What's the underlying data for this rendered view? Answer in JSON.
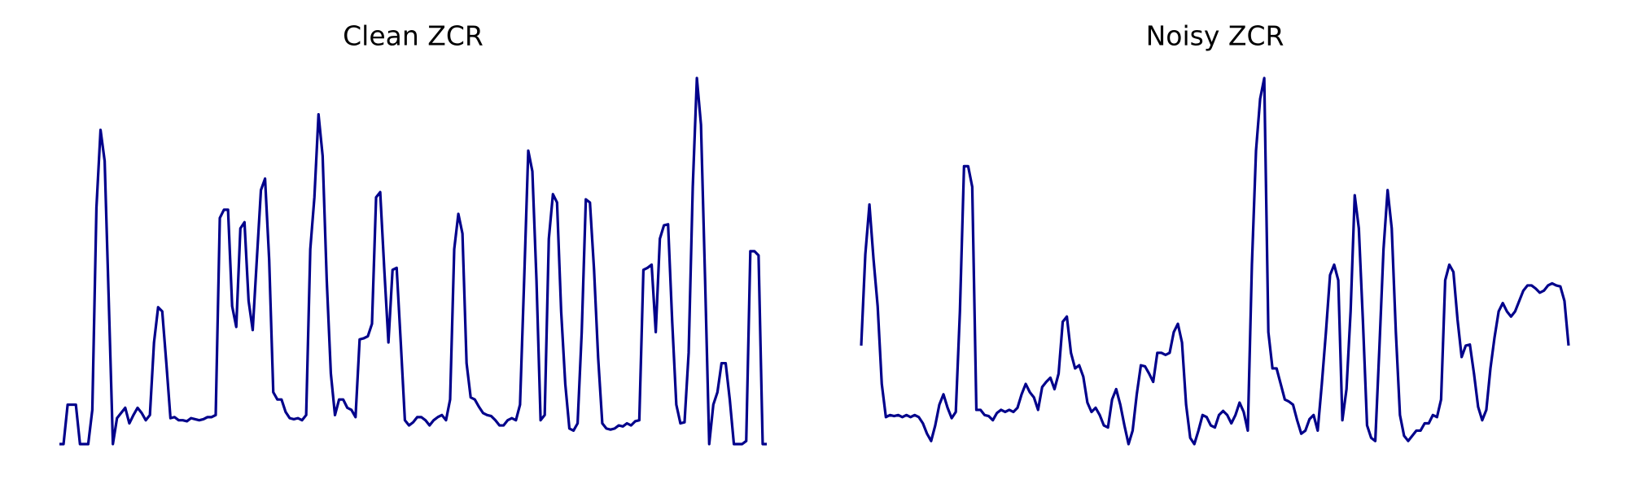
{
  "chart_data": [
    {
      "type": "line",
      "title": "Clean ZCR",
      "color": "#00008b",
      "ylim": [
        0,
        353
      ],
      "values": [
        0,
        0,
        38,
        38,
        38,
        0,
        0,
        0,
        33,
        228,
        303,
        273,
        138,
        0,
        25,
        30,
        35,
        20,
        28,
        35,
        30,
        23,
        28,
        98,
        132,
        128,
        78,
        25,
        26,
        23,
        23,
        22,
        25,
        24,
        23,
        24,
        26,
        26,
        28,
        218,
        226,
        226,
        133,
        113,
        208,
        214,
        138,
        110,
        178,
        245,
        256,
        178,
        50,
        43,
        43,
        31,
        25,
        24,
        25,
        23,
        28,
        188,
        238,
        318,
        278,
        158,
        68,
        28,
        43,
        43,
        35,
        33,
        26,
        101,
        102,
        104,
        116,
        238,
        243,
        168,
        98,
        168,
        170,
        98,
        23,
        18,
        21,
        26,
        26,
        23,
        18,
        23,
        26,
        28,
        23,
        43,
        188,
        222,
        203,
        78,
        45,
        43,
        36,
        30,
        28,
        27,
        23,
        18,
        18,
        23,
        25,
        23,
        38,
        158,
        283,
        263,
        158,
        23,
        28,
        198,
        241,
        233,
        128,
        58,
        15,
        13,
        20,
        108,
        236,
        233,
        168,
        83,
        20,
        15,
        14,
        15,
        18,
        17,
        20,
        18,
        22,
        23,
        168,
        170,
        173,
        108,
        198,
        211,
        212,
        118,
        38,
        20,
        21,
        88,
        248,
        353,
        308,
        158,
        0,
        38,
        50,
        78,
        78,
        43,
        0,
        0,
        0,
        3,
        186,
        186,
        182,
        0,
        0
      ]
    },
    {
      "type": "line",
      "title": "Noisy ZCR",
      "color": "#00008b",
      "ylim": [
        0,
        353
      ],
      "values": [
        95,
        183,
        231,
        178,
        133,
        58,
        26,
        28,
        27,
        28,
        26,
        28,
        26,
        28,
        26,
        20,
        10,
        3,
        18,
        38,
        48,
        35,
        25,
        31,
        128,
        268,
        268,
        248,
        33,
        33,
        28,
        27,
        23,
        30,
        33,
        31,
        33,
        31,
        35,
        48,
        58,
        50,
        45,
        33,
        55,
        60,
        64,
        53,
        68,
        118,
        123,
        88,
        73,
        76,
        65,
        40,
        31,
        35,
        28,
        18,
        16,
        43,
        53,
        38,
        18,
        0,
        13,
        48,
        76,
        75,
        68,
        60,
        88,
        88,
        86,
        88,
        108,
        116,
        98,
        38,
        6,
        0,
        13,
        28,
        26,
        18,
        16,
        28,
        32,
        28,
        20,
        28,
        40,
        31,
        13,
        173,
        283,
        333,
        353,
        108,
        73,
        73,
        58,
        43,
        41,
        38,
        23,
        10,
        13,
        24,
        28,
        13,
        58,
        108,
        163,
        173,
        158,
        23,
        53,
        128,
        240,
        208,
        118,
        18,
        6,
        3,
        93,
        188,
        245,
        208,
        108,
        28,
        8,
        3,
        8,
        13,
        13,
        20,
        20,
        28,
        26,
        43,
        158,
        173,
        166,
        120,
        84,
        95,
        96,
        68,
        36,
        23,
        33,
        73,
        103,
        128,
        136,
        128,
        123,
        128,
        138,
        148,
        153,
        153,
        150,
        146,
        148,
        153,
        155,
        153,
        152,
        138,
        95
      ]
    }
  ]
}
